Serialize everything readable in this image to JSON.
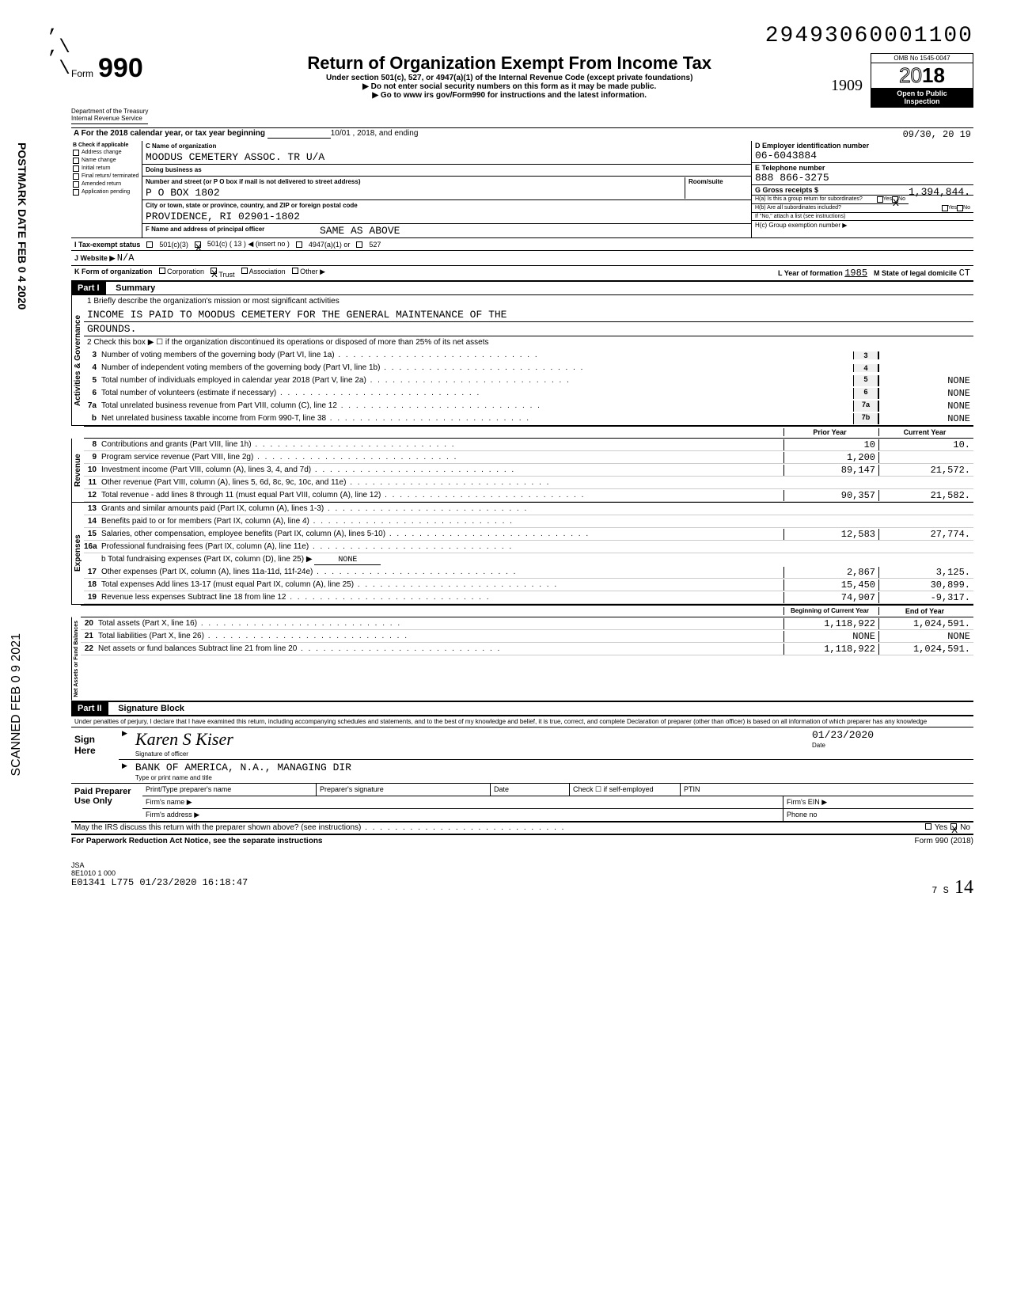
{
  "top_code": "29493060001100",
  "form": {
    "word": "Form",
    "number": "990"
  },
  "title": "Return of Organization Exempt From Income Tax",
  "subtitle1": "Under section 501(c), 527, or 4947(a)(1) of the Internal Revenue Code (except private foundations)",
  "subtitle2": "▶ Do not enter social security numbers on this form as it may be made public.",
  "subtitle3": "▶ Go to www irs gov/Form990 for instructions and the latest information.",
  "omb": {
    "no": "OMB No 1545-0047",
    "year_prefix": "20",
    "year": "18",
    "open": "Open to Public",
    "inspection": "Inspection"
  },
  "dept": "Department of the Treasury\nInternal Revenue Service",
  "row_a": {
    "text": "A  For the 2018 calendar year, or tax year beginning",
    "begin": "10/01 , 2018, and ending",
    "end": "09/30, 20 19"
  },
  "col_b": {
    "header": "B  Check if applicable",
    "items": [
      "Address change",
      "Name change",
      "Initial return",
      "Final return/ terminated",
      "Amended return",
      "Application pending"
    ]
  },
  "col_c": {
    "name_lbl": "C Name of organization",
    "name": "MOODUS CEMETERY ASSOC. TR U/A",
    "dba_lbl": "Doing business as",
    "dba": "",
    "street_lbl": "Number and street (or P O  box if mail is not delivered to street address)",
    "room_lbl": "Room/suite",
    "street": "P O BOX 1802",
    "city_lbl": "City or town, state or province, country, and ZIP or foreign postal code",
    "city": "PROVIDENCE, RI  02901-1802",
    "f_lbl": "F Name and address of principal officer",
    "f_val": "SAME AS ABOVE"
  },
  "col_d": {
    "ein_lbl": "D Employer identification number",
    "ein": "06-6043884",
    "tel_lbl": "E Telephone number",
    "tel": "888 866-3275",
    "gross_lbl": "G Gross receipts $",
    "gross": "1,394,844.",
    "ha_lbl": "H(a) Is this a group return for subordinates?",
    "ha_yes": "Yes",
    "ha_no": "No",
    "ha_x": "X",
    "hb_lbl": "H(b) Are all subordinates included?",
    "hb_yes": "Yes",
    "hb_no": "No",
    "hb_note": "If \"No,\" attach a list (see instructions)",
    "hc_lbl": "H(c) Group exemption number ▶"
  },
  "row_i": {
    "lbl": "I   Tax-exempt status",
    "c3": "501(c)(3)",
    "cX": "501(c) ( 13 ) ◀  (insert no )",
    "a1": "4947(a)(1) or",
    "s527": "527",
    "x": "X"
  },
  "row_j": {
    "lbl": "J   Website ▶",
    "val": "N/A"
  },
  "row_k": {
    "lbl": "K   Form of organization",
    "corp": "Corporation",
    "trust": "Trust",
    "assoc": "Association",
    "other": "Other ▶",
    "x": "X",
    "l_lbl": "L Year of formation",
    "l_val": "1985",
    "m_lbl": "M State of legal domicile",
    "m_val": "CT"
  },
  "part1": {
    "hdr": "Part I",
    "title": "Summary"
  },
  "governance": {
    "label": "Activities & Governance",
    "line1_lbl": "1   Briefly describe the organization's mission or most significant activities",
    "mission1": "INCOME IS PAID TO MOODUS CEMETERY FOR THE GENERAL MAINTENANCE OF THE",
    "mission2": "GROUNDS.",
    "line2": "2   Check this box ▶ ☐ if the organization discontinued its operations or disposed of more than 25% of its net assets",
    "lines": [
      {
        "n": "3",
        "d": "Number of voting members of the governing body (Part VI, line 1a)",
        "box": "3",
        "v": ""
      },
      {
        "n": "4",
        "d": "Number of independent voting members of the governing body (Part VI, line 1b)",
        "box": "4",
        "v": ""
      },
      {
        "n": "5",
        "d": "Total number of individuals employed in calendar year 2018 (Part V, line 2a)",
        "box": "5",
        "v": "NONE"
      },
      {
        "n": "6",
        "d": "Total number of volunteers (estimate if necessary)",
        "box": "6",
        "v": "NONE"
      },
      {
        "n": "7a",
        "d": "Total unrelated business revenue from Part VIII, column (C), line 12",
        "box": "7a",
        "v": "NONE"
      },
      {
        "n": "b",
        "d": "Net unrelated business taxable income from Form 990-T, line 38",
        "box": "7b",
        "v": "NONE"
      }
    ]
  },
  "revenue": {
    "label": "Revenue",
    "hdr_prior": "Prior Year",
    "hdr_current": "Current Year",
    "lines": [
      {
        "n": "8",
        "d": "Contributions and grants (Part VIII, line 1h)",
        "p": "10",
        "c": "10."
      },
      {
        "n": "9",
        "d": "Program service revenue (Part VIII, line 2g)",
        "p": "1,200",
        "c": ""
      },
      {
        "n": "10",
        "d": "Investment income (Part VIII, column (A), lines 3, 4, and 7d)",
        "p": "89,147",
        "c": "21,572."
      },
      {
        "n": "11",
        "d": "Other revenue (Part VIII, column (A), lines 5, 6d, 8c, 9c, 10c, and 11e)",
        "p": "",
        "c": ""
      },
      {
        "n": "12",
        "d": "Total revenue - add lines 8 through 11 (must equal Part VIII, column (A), line 12)",
        "p": "90,357",
        "c": "21,582."
      }
    ]
  },
  "expenses": {
    "label": "Expenses",
    "lines": [
      {
        "n": "13",
        "d": "Grants and similar amounts paid (Part IX, column (A), lines 1-3)",
        "p": "",
        "c": ""
      },
      {
        "n": "14",
        "d": "Benefits paid to or for members (Part IX, column (A), line 4)",
        "p": "",
        "c": ""
      },
      {
        "n": "15",
        "d": "Salaries, other compensation, employee benefits (Part IX, column (A), lines 5-10)",
        "p": "12,583",
        "c": "27,774."
      },
      {
        "n": "16a",
        "d": "Professional fundraising fees (Part IX, column (A), line 11e)",
        "p": "",
        "c": ""
      }
    ],
    "line16b": "b Total fundraising expenses (Part IX, column (D), line 25) ▶",
    "line16b_val": "NONE",
    "lines2": [
      {
        "n": "17",
        "d": "Other expenses (Part IX, column (A), lines 11a-11d, 11f-24e)",
        "p": "2,867",
        "c": "3,125."
      },
      {
        "n": "18",
        "d": "Total expenses  Add lines 13-17 (must equal Part IX, column (A), line 25)",
        "p": "15,450",
        "c": "30,899."
      },
      {
        "n": "19",
        "d": "Revenue less expenses  Subtract line 18 from line 12",
        "p": "74,907",
        "c": "-9,317."
      }
    ]
  },
  "netassets": {
    "label": "Net Assets or Fund Balances",
    "hdr_begin": "Beginning of Current Year",
    "hdr_end": "End of Year",
    "lines": [
      {
        "n": "20",
        "d": "Total assets (Part X, line 16)",
        "p": "1,118,922",
        "c": "1,024,591."
      },
      {
        "n": "21",
        "d": "Total liabilities (Part X, line 26)",
        "p": "NONE",
        "c": "NONE"
      },
      {
        "n": "22",
        "d": "Net assets or fund balances  Subtract line 21 from line 20",
        "p": "1,118,922",
        "c": "1,024,591."
      }
    ]
  },
  "part2": {
    "hdr": "Part II",
    "title": "Signature Block"
  },
  "penalties": "Under penalties of perjury, I declare that I have examined this return, including accompanying schedules and statements, and to the best of my knowledge and belief, it is true, correct, and complete  Declaration of preparer (other than officer) is based on all information of which preparer has any knowledge",
  "sign": {
    "here": "Sign Here",
    "arrow": "▶",
    "sig_script": "Karen S Kiser",
    "sig_lbl": "Signature of officer",
    "date": "01/23/2020",
    "date_lbl": "Date",
    "name": "BANK OF AMERICA, N.A., MANAGING DIR",
    "name_lbl": "Type or print name and title"
  },
  "paid": {
    "left": "Paid Preparer Use Only",
    "r1c1": "Print/Type preparer's name",
    "r1c2": "Preparer's signature",
    "r1c3": "Date",
    "r1c4": "Check ☐ if self-employed",
    "r1c5": "PTIN",
    "r2": "Firm's name   ▶",
    "r2b": "Firm's EIN ▶",
    "r3": "Firm's address ▶",
    "r3b": "Phone no"
  },
  "irs_discuss": "May the IRS discuss this return with the preparer shown above? (see instructions)",
  "irs_yes": "Yes",
  "irs_no": "No",
  "irs_x": "X",
  "paperwork": "For Paperwork Reduction Act Notice, see the separate instructions",
  "form_footer": "Form 990 (2018)",
  "jsa1": "JSA",
  "jsa2": "8E1010 1 000",
  "jsa3": "E01341 L775 01/23/2020 16:18:47",
  "page_no": "7     S",
  "stamp1": "POSTMARK DATE  FEB 0 4 2020",
  "stamp2": "SCANNED  FEB 0 9 2021",
  "hand_1909": "1909",
  "hand_init": "14"
}
